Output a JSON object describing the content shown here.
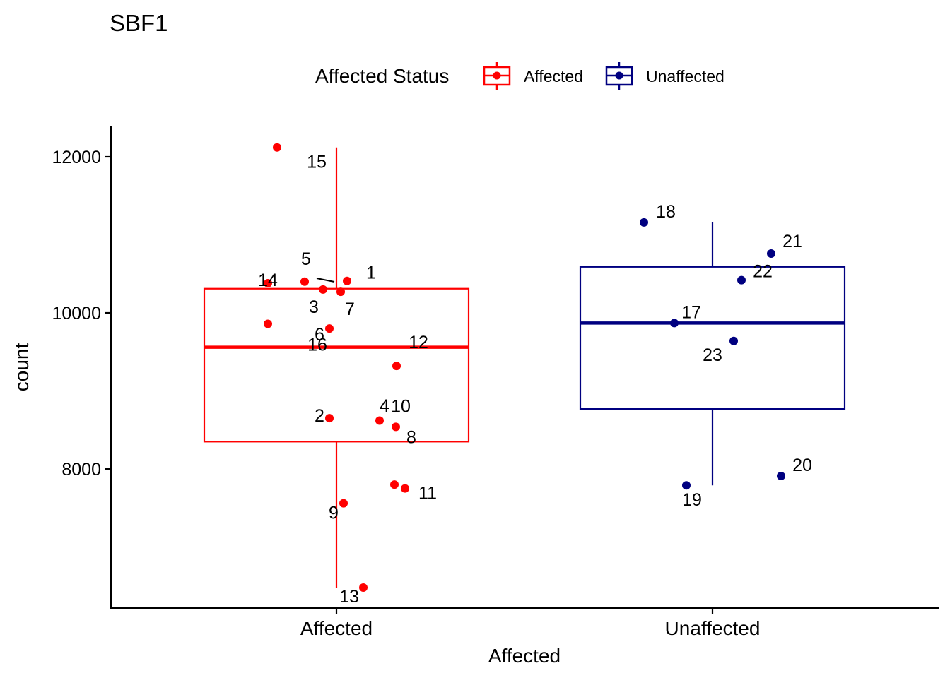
{
  "chart_data": {
    "type": "boxplot",
    "title": "SBF1",
    "xlabel": "Affected",
    "ylabel": "count",
    "ylim": [
      6250,
      12400
    ],
    "yticks": [
      8000,
      10000,
      12000
    ],
    "ytick_labels": [
      "8000",
      "10000",
      "12000"
    ],
    "legend": {
      "title": "Affected Status",
      "position": "top",
      "entries": [
        {
          "label": "Affected",
          "color": "#ff0000"
        },
        {
          "label": "Unaffected",
          "color": "#000080"
        }
      ]
    },
    "groups": [
      {
        "name": "Affected",
        "color": "#ff0000",
        "box": {
          "lower_whisker": 6480,
          "q1": 8350,
          "median": 9560,
          "q3": 10310,
          "upper_whisker": 12120
        },
        "points": [
          {
            "id": "1",
            "value": 10410
          },
          {
            "id": "2",
            "value": 8650
          },
          {
            "id": "3",
            "value": 10300
          },
          {
            "id": "4",
            "value": 7800
          },
          {
            "id": "5",
            "value": 10400
          },
          {
            "id": "6",
            "value": 9800
          },
          {
            "id": "7",
            "value": 10270
          },
          {
            "id": "8",
            "value": 8540
          },
          {
            "id": "9",
            "value": 7560
          },
          {
            "id": "10",
            "value": 8620
          },
          {
            "id": "11",
            "value": 7750
          },
          {
            "id": "12",
            "value": 9320
          },
          {
            "id": "13",
            "value": 6480
          },
          {
            "id": "14",
            "value": 10380
          },
          {
            "id": "15",
            "value": 12120
          },
          {
            "id": "16",
            "value": 9860
          }
        ]
      },
      {
        "name": "Unaffected",
        "color": "#000080",
        "box": {
          "lower_whisker": 7790,
          "q1": 8770,
          "median": 9870,
          "q3": 10590,
          "upper_whisker": 11160
        },
        "points": [
          {
            "id": "17",
            "value": 9870
          },
          {
            "id": "18",
            "value": 11160
          },
          {
            "id": "19",
            "value": 7790
          },
          {
            "id": "20",
            "value": 7910
          },
          {
            "id": "21",
            "value": 10760
          },
          {
            "id": "22",
            "value": 10420
          },
          {
            "id": "23",
            "value": 9640
          }
        ]
      }
    ]
  }
}
